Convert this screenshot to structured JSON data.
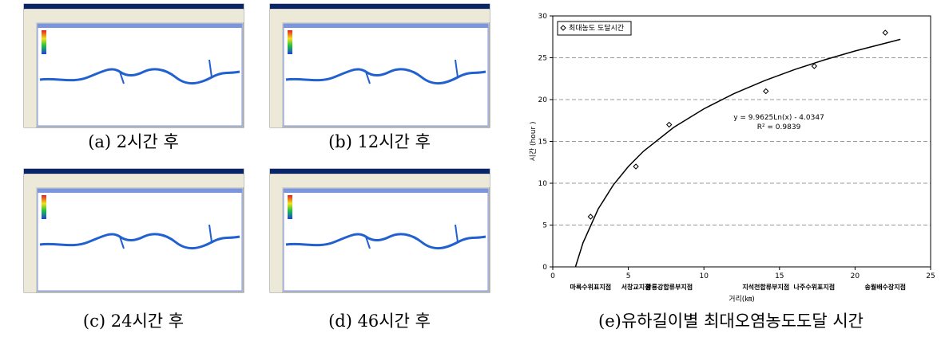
{
  "captions": [
    "(a) 2시간 후",
    "(b) 12시간 후",
    "(c) 24시간 후",
    "(d) 46시간 후",
    "(e)유하길이별 최대오염농도도달 시간"
  ],
  "chart_data": {
    "type": "scatter",
    "x_label": "거리(㎞)",
    "y_label": "시간 (hour )",
    "annotation": [
      "y = 9.9625Ln(x) - 4.0347",
      "R² = 0.9839"
    ],
    "series": [
      {
        "name": "최대농도 도달시간",
        "color": "#000000",
        "x": [
          2.5,
          5.5,
          7.7,
          14.1,
          17.3,
          22
        ],
        "values": [
          6,
          12,
          17,
          21,
          24,
          28
        ],
        "point_labels": [
          "마륵수위표지점",
          "서창교지점",
          "황룡강합류부지점",
          "지석천합류부지점",
          "나주수위표지점",
          "송월배수장지점"
        ]
      }
    ],
    "trendline": {
      "color": "#000000",
      "x": [
        1.5,
        2,
        3,
        4,
        5,
        6,
        8,
        10,
        12,
        14,
        16,
        18,
        20,
        23
      ],
      "values": [
        0,
        2.87,
        6.91,
        9.78,
        12.0,
        13.82,
        16.68,
        18.9,
        20.72,
        22.26,
        23.59,
        24.76,
        25.81,
        27.2
      ]
    },
    "xlim": [
      0,
      25
    ],
    "xticks": [
      0,
      5,
      10,
      15,
      20,
      25
    ],
    "ylim": [
      0,
      30
    ],
    "yticks": [
      0,
      5,
      10,
      15,
      20,
      25,
      30
    ],
    "grid": true,
    "legend": "top-left"
  }
}
